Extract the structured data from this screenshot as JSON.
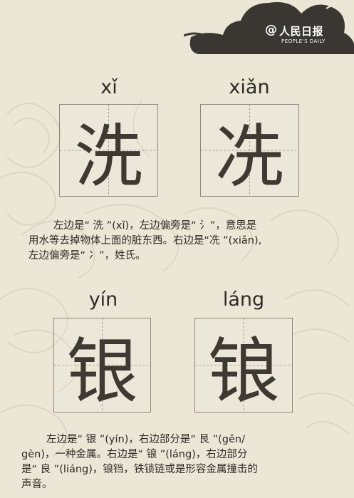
{
  "logo": {
    "at": "@",
    "name": "人民日报",
    "sub": "PEOPLE'S DAILY"
  },
  "entries": [
    {
      "pinyin": "xǐ",
      "char": "洗"
    },
    {
      "pinyin": "xiǎn",
      "char": "冼"
    },
    {
      "pinyin": "yín",
      "char": "银"
    },
    {
      "pinyin": "láng",
      "char": "锒"
    }
  ],
  "paragraph1": [
    "左边是“ 洗 ”(xǐ)，左边偏旁是“ 氵”，意思是",
    "用水等去掉物体上面的脏东西。右边是“冼 ”(xiǎn),",
    "左边偏旁是“ 冫”，姓氏。"
  ],
  "paragraph2": [
    "左边是“ 银 ”(yín)，右边部分是“ 艮 ”(gěn/",
    "gèn)，一种金属。右边是“ 锒 ”(láng)，右边部分",
    "是“ 良 ”(liáng)，锒铛，铁锁链或是形容金属撞击的",
    "声音。"
  ]
}
